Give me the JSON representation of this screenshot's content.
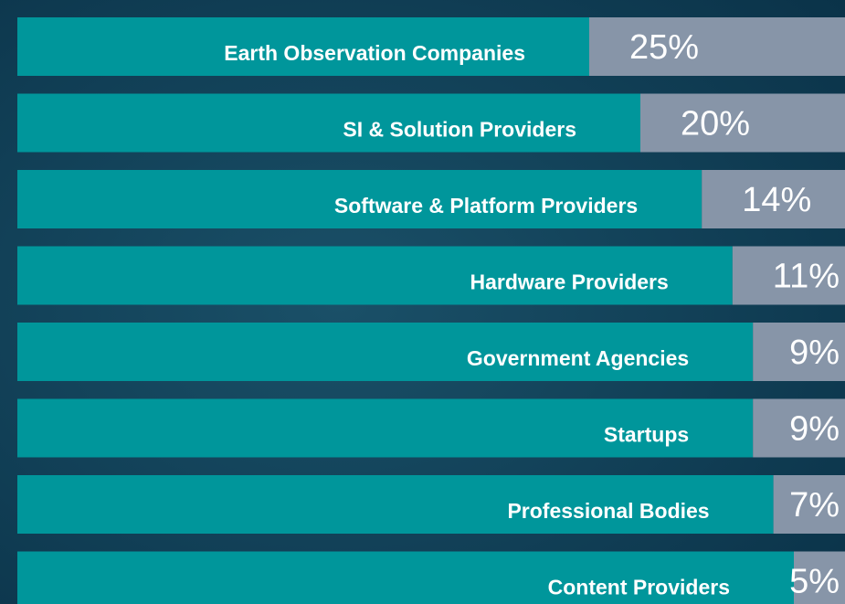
{
  "chart_data": {
    "type": "bar",
    "orientation": "horizontal",
    "categories": [
      "Earth Observation Companies",
      "SI & Solution Providers",
      "Software & Platform Providers",
      "Hardware Providers",
      "Government Agencies",
      "Startups",
      "Professional Bodies",
      "Content Providers"
    ],
    "values": [
      25,
      20,
      14,
      11,
      9,
      9,
      7,
      5
    ],
    "value_labels": [
      "25%",
      "20%",
      "14%",
      "11%",
      "9%",
      "9%",
      "7%",
      "5%"
    ],
    "color": "#8795a8",
    "bar_color": "#00969b"
  }
}
